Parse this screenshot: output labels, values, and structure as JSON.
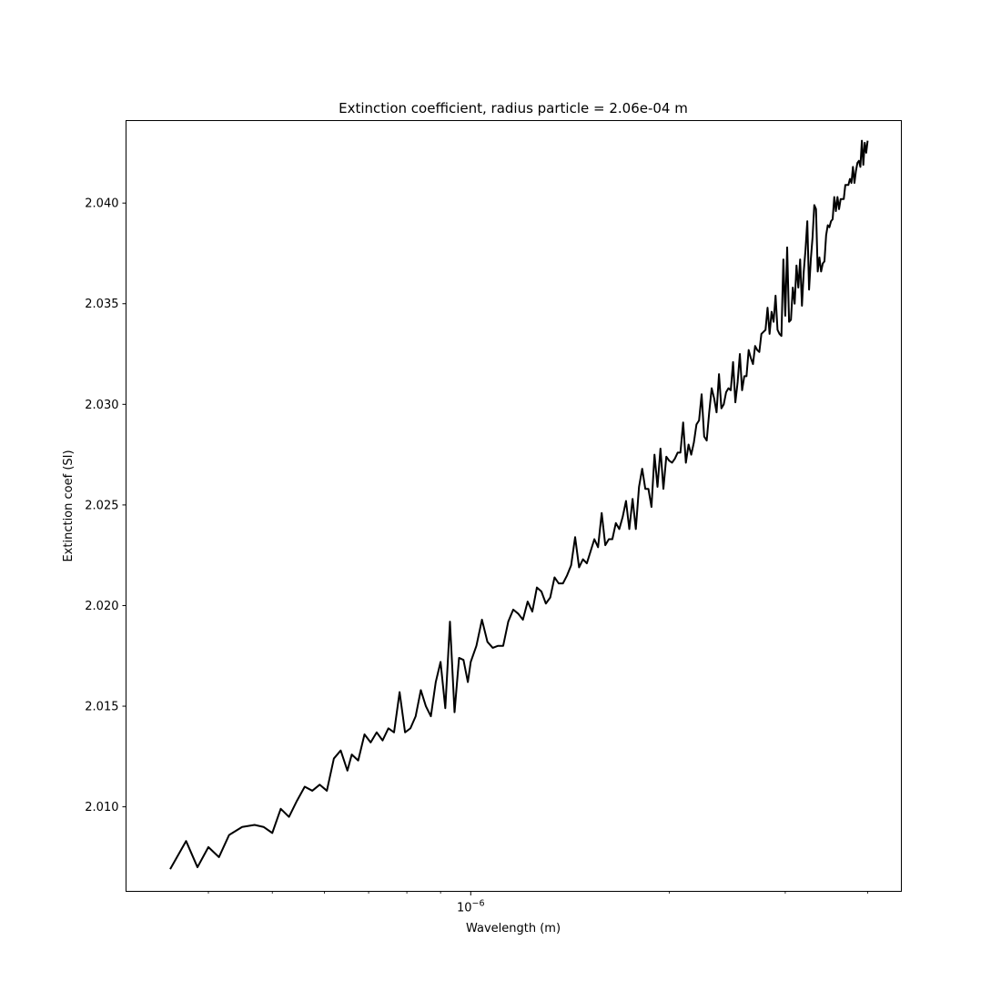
{
  "chart_data": {
    "type": "line",
    "title": "Extinction coefficient, radius particle = 2.06e-04 m",
    "xlabel": "Wavelength (m)",
    "ylabel": "Extinction coef (SI)",
    "xscale": "log",
    "xlim": [
      3e-07,
      4.5e-06
    ],
    "ylim": [
      2.0058,
      2.0441
    ],
    "x_major_ticks": [
      1e-06
    ],
    "x_major_tick_labels": [
      "10^-6"
    ],
    "x_minor_ticks": [
      4e-07,
      5e-07,
      6e-07,
      7e-07,
      8e-07,
      9e-07,
      2e-06,
      3e-06,
      4e-06
    ],
    "y_ticks": [
      2.01,
      2.015,
      2.02,
      2.025,
      2.03,
      2.035,
      2.04
    ],
    "y_tick_labels": [
      "2.010",
      "2.015",
      "2.020",
      "2.025",
      "2.030",
      "2.035",
      "2.040"
    ],
    "grid": false,
    "line_color": "#000000",
    "series": [
      {
        "x": [
          3.5e-07,
          3.7e-07,
          3.85e-07,
          4e-07,
          4.15e-07,
          4.3e-07,
          4.5e-07,
          4.7e-07,
          4.85e-07,
          5e-07,
          5.15e-07,
          5.3e-07,
          5.45e-07,
          5.6e-07,
          5.75e-07,
          5.9e-07,
          6.05e-07,
          6.2e-07,
          6.35e-07,
          6.5e-07,
          6.6e-07,
          6.75e-07,
          6.9e-07,
          7.05e-07,
          7.2e-07,
          7.35e-07,
          7.5e-07,
          7.65e-07,
          7.8e-07,
          7.95e-07,
          8.1e-07,
          8.25e-07,
          8.4e-07,
          8.55e-07,
          8.7e-07,
          8.85e-07,
          9e-07,
          9.15e-07,
          9.3e-07,
          9.45e-07,
          9.6e-07,
          9.75e-07,
          9.9e-07,
          1e-06,
          1.02e-06,
          1.04e-06,
          1.06e-06,
          1.08e-06,
          1.1e-06,
          1.12e-06,
          1.14e-06,
          1.16e-06,
          1.18e-06,
          1.2e-06,
          1.22e-06,
          1.24e-06,
          1.26e-06,
          1.28e-06,
          1.3e-06,
          1.32e-06,
          1.34e-06,
          1.36e-06,
          1.38e-06,
          1.4e-06,
          1.42e-06,
          1.44e-06,
          1.46e-06,
          1.48e-06,
          1.5e-06,
          1.52e-06,
          1.54e-06,
          1.56e-06,
          1.58e-06,
          1.6e-06,
          1.62e-06,
          1.64e-06,
          1.66e-06,
          1.68e-06,
          1.7e-06,
          1.72e-06,
          1.74e-06,
          1.76e-06,
          1.78e-06,
          1.8e-06,
          1.82e-06,
          1.84e-06,
          1.86e-06,
          1.88e-06,
          1.9e-06,
          1.92e-06,
          1.94e-06,
          1.96e-06,
          1.98e-06,
          2e-06,
          2.02e-06,
          2.04e-06,
          2.06e-06,
          2.08e-06,
          2.1e-06,
          2.12e-06,
          2.14e-06,
          2.16e-06,
          2.18e-06,
          2.2e-06,
          2.22e-06,
          2.24e-06,
          2.26e-06,
          2.28e-06,
          2.3e-06,
          2.32e-06,
          2.34e-06,
          2.36e-06,
          2.38e-06,
          2.4e-06,
          2.42e-06,
          2.44e-06,
          2.46e-06,
          2.48e-06,
          2.5e-06,
          2.52e-06,
          2.54e-06,
          2.56e-06,
          2.58e-06,
          2.6e-06,
          2.62e-06,
          2.64e-06,
          2.66e-06,
          2.68e-06,
          2.7e-06,
          2.72e-06,
          2.74e-06,
          2.76e-06,
          2.78e-06,
          2.8e-06,
          2.82e-06,
          2.84e-06,
          2.86e-06,
          2.88e-06,
          2.9e-06,
          2.92e-06,
          2.94e-06,
          2.96e-06,
          2.98e-06,
          3e-06,
          3.02e-06,
          3.04e-06,
          3.06e-06,
          3.08e-06,
          3.1e-06,
          3.12e-06,
          3.14e-06,
          3.16e-06,
          3.18e-06,
          3.2e-06,
          3.22e-06,
          3.24e-06,
          3.26e-06,
          3.28e-06,
          3.3e-06,
          3.32e-06,
          3.34e-06,
          3.36e-06,
          3.38e-06,
          3.4e-06,
          3.42e-06,
          3.44e-06,
          3.46e-06,
          3.48e-06,
          3.5e-06,
          3.52e-06,
          3.54e-06,
          3.56e-06,
          3.58e-06,
          3.6e-06,
          3.62e-06,
          3.64e-06,
          3.66e-06,
          3.68e-06,
          3.7e-06,
          3.72e-06,
          3.74e-06,
          3.76e-06,
          3.78e-06,
          3.8e-06,
          3.82e-06,
          3.84e-06,
          3.86e-06,
          3.88e-06,
          3.9e-06,
          3.92e-06,
          3.94e-06,
          3.96e-06,
          3.98e-06,
          4e-06
        ],
        "y": [
          2.0069,
          2.0083,
          2.007,
          2.008,
          2.0075,
          2.0086,
          2.009,
          2.0091,
          2.009,
          2.0087,
          2.0099,
          2.0095,
          2.0103,
          2.011,
          2.0108,
          2.0111,
          2.0108,
          2.0124,
          2.0128,
          2.0118,
          2.0126,
          2.0123,
          2.0136,
          2.0132,
          2.0137,
          2.0133,
          2.0139,
          2.0137,
          2.0157,
          2.0137,
          2.0139,
          2.0145,
          2.0158,
          2.015,
          2.0145,
          2.0162,
          2.0172,
          2.0149,
          2.0192,
          2.0147,
          2.0174,
          2.0173,
          2.0162,
          2.0172,
          2.018,
          2.0193,
          2.0182,
          2.0179,
          2.018,
          2.018,
          2.0192,
          2.0198,
          2.0196,
          2.0193,
          2.0202,
          2.0197,
          2.0209,
          2.0207,
          2.0201,
          2.0204,
          2.0214,
          2.0211,
          2.0211,
          2.0215,
          2.022,
          2.0234,
          2.0219,
          2.0223,
          2.0221,
          2.0227,
          2.0233,
          2.0229,
          2.0246,
          2.023,
          2.0233,
          2.0233,
          2.0241,
          2.0238,
          2.0244,
          2.0252,
          2.0238,
          2.0253,
          2.0238,
          2.0259,
          2.0268,
          2.0258,
          2.0258,
          2.0249,
          2.0275,
          2.0259,
          2.0278,
          2.0258,
          2.0274,
          2.0272,
          2.0271,
          2.0273,
          2.0276,
          2.0276,
          2.0291,
          2.0271,
          2.028,
          2.0275,
          2.0281,
          2.029,
          2.0292,
          2.0305,
          2.0284,
          2.0282,
          2.0296,
          2.0308,
          2.0303,
          2.0296,
          2.0315,
          2.0298,
          2.03,
          2.0306,
          2.0308,
          2.0307,
          2.0321,
          2.0301,
          2.0311,
          2.0325,
          2.0307,
          2.0314,
          2.0314,
          2.0327,
          2.0323,
          2.032,
          2.0329,
          2.0327,
          2.0326,
          2.0335,
          2.0336,
          2.0337,
          2.0348,
          2.0335,
          2.0346,
          2.0341,
          2.0354,
          2.0337,
          2.0335,
          2.0334,
          2.0372,
          2.0344,
          2.0378,
          2.0341,
          2.0342,
          2.0358,
          2.035,
          2.0369,
          2.0358,
          2.0372,
          2.0349,
          2.0366,
          2.0377,
          2.0391,
          2.0357,
          2.0372,
          2.0383,
          2.0399,
          2.0397,
          2.0366,
          2.0373,
          2.0366,
          2.037,
          2.0371,
          2.0384,
          2.0389,
          2.0388,
          2.0391,
          2.0392,
          2.0403,
          2.0396,
          2.0403,
          2.0397,
          2.0402,
          2.0402,
          2.0402,
          2.0409,
          2.0409,
          2.0409,
          2.0412,
          2.041,
          2.0418,
          2.041,
          2.0416,
          2.042,
          2.0421,
          2.0418,
          2.0431,
          2.0419,
          2.043,
          2.0425,
          2.0431
        ]
      }
    ]
  }
}
